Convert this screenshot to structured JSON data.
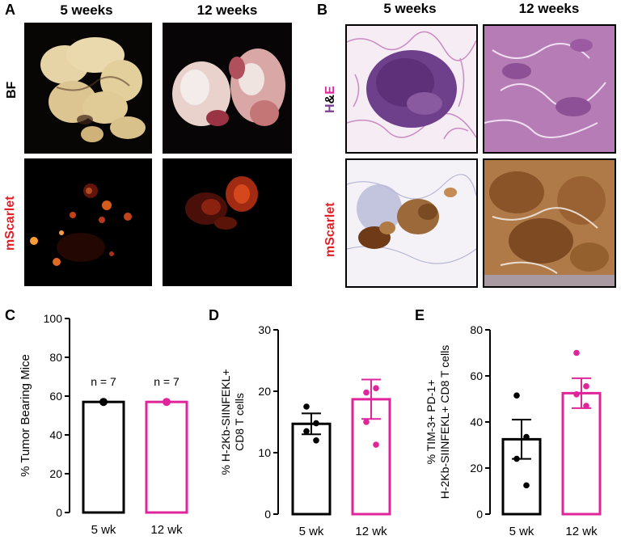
{
  "panel_a": {
    "letter": "A",
    "col1": "5 weeks",
    "col2": "12 weeks",
    "row1": "BF",
    "row2": "mScarlet"
  },
  "panel_b": {
    "letter": "B",
    "col1": "5 weeks",
    "col2": "12 weeks",
    "row1_h": "H",
    "row1_amp": "&",
    "row1_e": "E",
    "row2": "mScarlet"
  },
  "colors": {
    "black": "#000000",
    "magenta": "#e0259b",
    "red_label": "#e11f26",
    "he_purple": "#7a3e8e"
  },
  "chart_data": [
    {
      "panel": "C",
      "type": "bar",
      "categories": [
        "5 wk",
        "12 wk"
      ],
      "values": [
        57,
        57
      ],
      "points": [
        [
          57
        ],
        [
          57
        ]
      ],
      "annotations": [
        "n = 7",
        "n = 7"
      ],
      "ylabel": "% Tumor Bearing Mice",
      "ylim": [
        0,
        100
      ],
      "yticks": [
        0,
        20,
        40,
        60,
        80,
        100
      ],
      "series_colors": [
        "#000000",
        "#e0259b"
      ]
    },
    {
      "panel": "D",
      "type": "bar",
      "categories": [
        "5 wk",
        "12 wk"
      ],
      "values": [
        14.7,
        18.7
      ],
      "errors": [
        1.7,
        3.2
      ],
      "points": [
        [
          17.5,
          14.8,
          13.5,
          12.0
        ],
        [
          19.8,
          20.5,
          15.0,
          11.3
        ]
      ],
      "ylabel_line1": "% H-2Kb-SIINFEKL+",
      "ylabel_line2": "CD8 T cells",
      "ylim": [
        0,
        30
      ],
      "yticks": [
        0,
        10,
        20,
        30
      ],
      "series_colors": [
        "#000000",
        "#e0259b"
      ]
    },
    {
      "panel": "E",
      "type": "bar",
      "categories": [
        "5 wk",
        "12 wk"
      ],
      "values": [
        32.5,
        52.5
      ],
      "errors": [
        8.5,
        6.5
      ],
      "points": [
        [
          51.5,
          33.5,
          24.0,
          12.5
        ],
        [
          70.0,
          55.5,
          52.0,
          47.0
        ]
      ],
      "ylabel_line1": "% TIM-3+ PD-1+",
      "ylabel_line2": "H-2Kb-SIINFEKL+ CD8 T cells",
      "ylim": [
        0,
        80
      ],
      "yticks": [
        0,
        20,
        40,
        60,
        80
      ],
      "series_colors": [
        "#000000",
        "#e0259b"
      ]
    }
  ],
  "panel_letters": {
    "c": "C",
    "d": "D",
    "e": "E"
  }
}
